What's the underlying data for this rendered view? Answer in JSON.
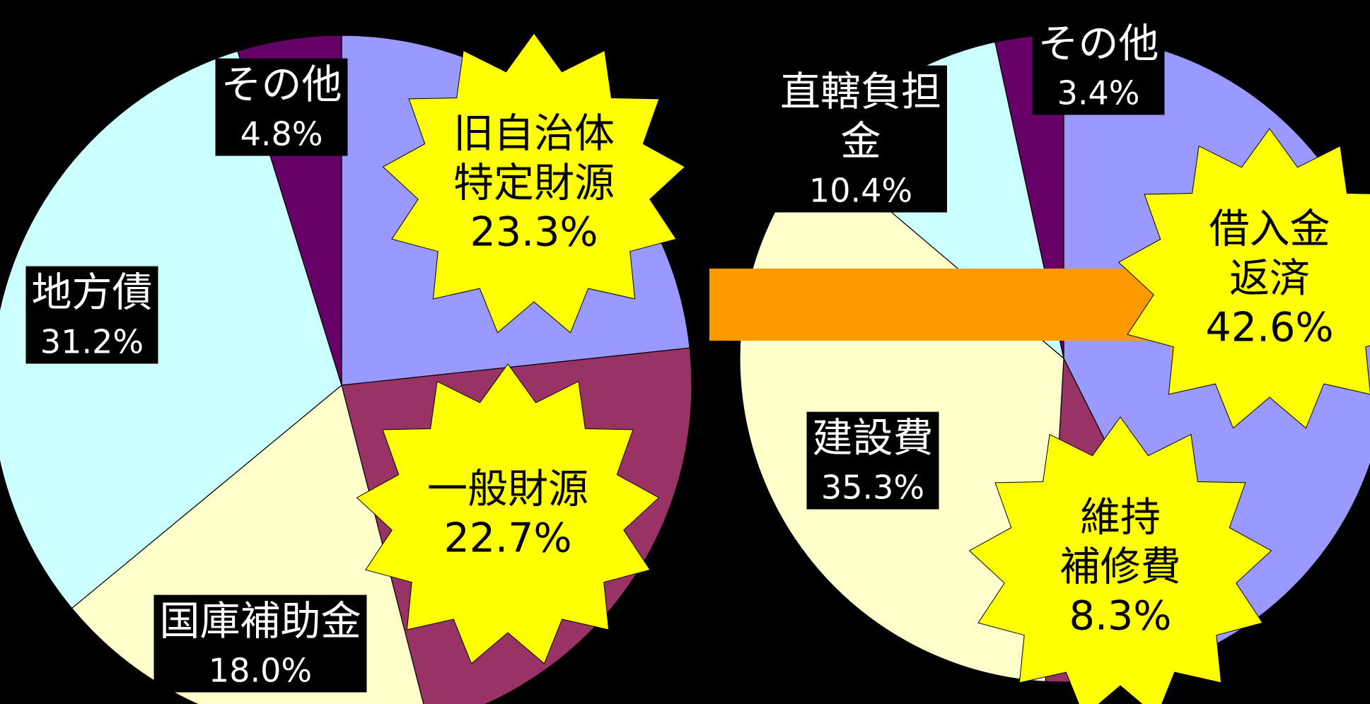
{
  "chart_data": [
    {
      "type": "pie",
      "categories": [
        "旧自治体\n特定財源",
        "一般財源",
        "国庫補助金",
        "地方債",
        "その他"
      ],
      "values": [
        23.3,
        22.7,
        18.0,
        31.2,
        4.8
      ],
      "value_labels": [
        "23.3%",
        "22.7%",
        "18.0%",
        "31.2%",
        "4.8%"
      ],
      "colors": [
        "#9999ff",
        "#993366",
        "#ffffcc",
        "#ccffff",
        "#660066"
      ]
    },
    {
      "type": "pie",
      "categories": [
        "借入金\n返済",
        "維持\n補修費",
        "建設費",
        "直轄負担\n金",
        "その他"
      ],
      "values": [
        42.6,
        8.3,
        35.3,
        10.4,
        3.4
      ],
      "value_labels": [
        "42.6%",
        "8.3%",
        "35.3%",
        "10.4%",
        "3.4%"
      ],
      "colors": [
        "#9999ff",
        "#993366",
        "#ffffcc",
        "#ccffff",
        "#660066"
      ]
    }
  ]
}
